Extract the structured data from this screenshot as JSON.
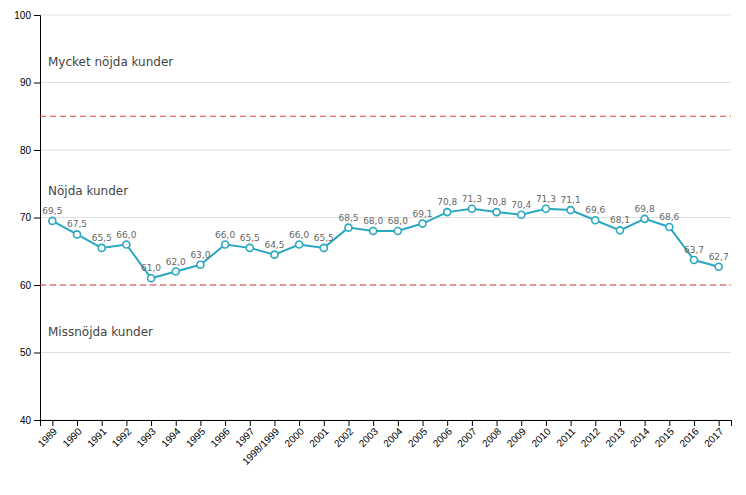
{
  "chart_data": {
    "type": "line",
    "categories": [
      "1989",
      "1990",
      "1991",
      "1992",
      "1993",
      "1994",
      "1995",
      "1996",
      "1997",
      "1998/1999",
      "2000",
      "2001",
      "2002",
      "2003",
      "2004",
      "2005",
      "2006",
      "2007",
      "2008",
      "2009",
      "2010",
      "2011",
      "2012",
      "2013",
      "2014",
      "2015",
      "2016",
      "2017"
    ],
    "values": [
      69.5,
      67.5,
      65.5,
      66.0,
      61.0,
      62.0,
      63.0,
      66.0,
      65.5,
      64.5,
      66.0,
      65.5,
      68.5,
      68.0,
      68.0,
      69.1,
      70.8,
      71.3,
      70.8,
      70.4,
      71.3,
      71.1,
      69.6,
      68.1,
      69.8,
      68.6,
      63.7,
      62.7
    ],
    "value_labels": [
      "69,5",
      "67,5",
      "65,5",
      "66,0",
      "61,0",
      "62,0",
      "63,0",
      "66,0",
      "65,5",
      "64,5",
      "66,0",
      "65,5",
      "68,5",
      "68,0",
      "68,0",
      "69,1",
      "70,8",
      "71,3",
      "70,8",
      "70,4",
      "71,3",
      "71,1",
      "69,6",
      "68,1",
      "69,8",
      "68,6",
      "63,7",
      "62,7"
    ],
    "data_labels": true,
    "color": "#29a8c0",
    "marker": "circle",
    "ylim": [
      40,
      100
    ],
    "yticks": [
      40,
      50,
      60,
      70,
      80,
      90,
      100
    ],
    "grid": true,
    "hlines": [
      {
        "value": 85,
        "color": "#d94040",
        "line_style": "dashed"
      },
      {
        "value": 60,
        "color": "#d94040",
        "line_style": "dashed"
      }
    ],
    "annotations": [
      {
        "text": "Mycket nöjda kunder",
        "y": 93
      },
      {
        "text": "Nöjda kunder",
        "y": 74
      },
      {
        "text": "Missnöjda kunder",
        "y": 53
      }
    ]
  }
}
